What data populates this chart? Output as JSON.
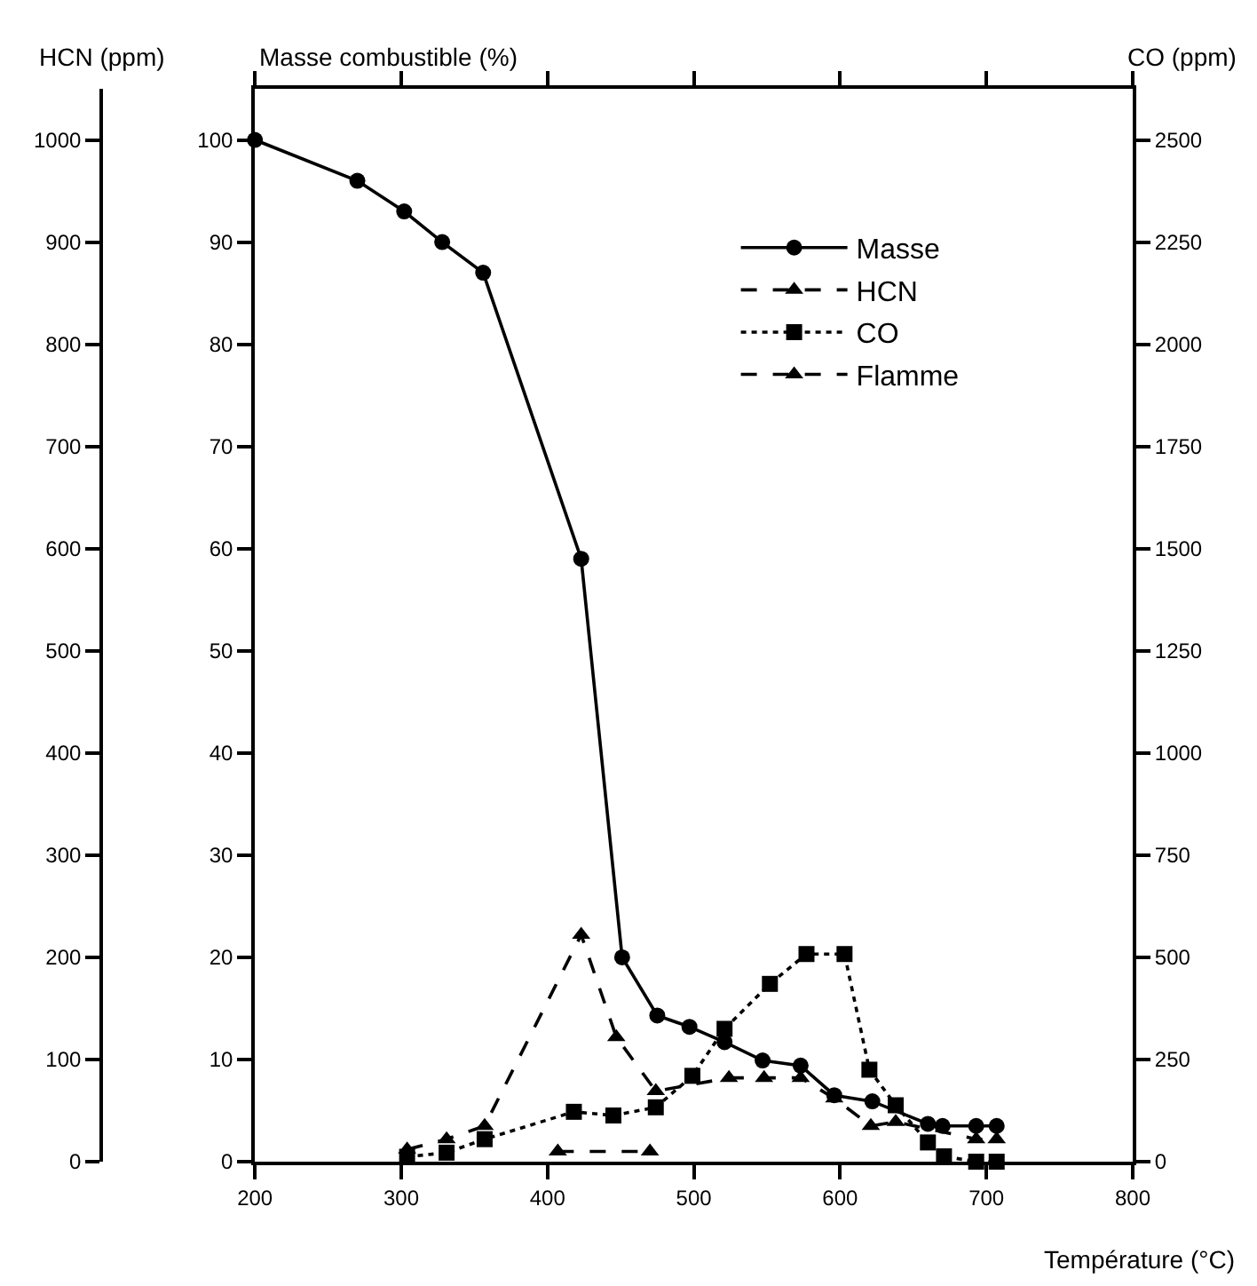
{
  "chart_data": {
    "type": "line",
    "xlabel": "Température (°C)",
    "ylabel": "Masse combustible (%)",
    "y2label": "HCN (ppm)",
    "y3label": "CO (ppm)",
    "xlim": [
      200,
      800
    ],
    "xticks": [
      200,
      300,
      400,
      500,
      600,
      700,
      800
    ],
    "ylim": [
      0,
      105
    ],
    "yticks": [
      0,
      10,
      20,
      30,
      40,
      50,
      60,
      70,
      80,
      90,
      100
    ],
    "y2lim": [
      0,
      1050
    ],
    "y2ticks": [
      0,
      100,
      200,
      300,
      400,
      500,
      600,
      700,
      800,
      900,
      1000
    ],
    "y3lim": [
      0,
      2625
    ],
    "y3ticks": [
      0,
      250,
      500,
      750,
      1000,
      1250,
      1500,
      1750,
      2000,
      2250,
      2500
    ],
    "grid": false,
    "legend": "top right",
    "series": [
      {
        "name": "Masse",
        "color": "#000000",
        "marker": "circle",
        "line_style": "solid",
        "x": [
          200,
          270,
          302,
          328,
          356,
          423,
          451,
          475,
          497,
          521,
          547,
          573,
          596,
          622,
          660,
          670,
          693,
          707
        ],
        "values": [
          100,
          96,
          93,
          90,
          87,
          59,
          20,
          14.3,
          13.2,
          11.7,
          9.9,
          9.4,
          6.5,
          5.9,
          3.7,
          3.5,
          3.5,
          3.5
        ]
      },
      {
        "name": "HCN",
        "color": "#000000",
        "marker": "triangle",
        "line_style": "dashed",
        "axis": "y2",
        "x": [
          304,
          331,
          357,
          423,
          447,
          474,
          524,
          548,
          573,
          596,
          621,
          638,
          693,
          707
        ],
        "values": [
          12,
          22,
          35,
          222,
          122,
          69,
          82,
          82,
          82,
          62,
          35,
          39,
          22,
          22
        ]
      },
      {
        "name": "CO",
        "color": "#000000",
        "marker": "square",
        "line_style": "dotted",
        "axis": "y3",
        "x": [
          304,
          331,
          357,
          418,
          445,
          474,
          499,
          521,
          552,
          577,
          603,
          620,
          638,
          660,
          671,
          693,
          707
        ],
        "values": [
          12,
          22,
          55,
          122,
          113,
          133,
          210,
          325,
          435,
          508,
          508,
          225,
          138,
          47,
          13,
          0,
          0
        ]
      },
      {
        "name": "Flamme",
        "color": "#000000",
        "marker": "triangle",
        "line_style": "dashed",
        "x": [
          407,
          470
        ],
        "values": [
          1,
          1
        ]
      }
    ]
  }
}
